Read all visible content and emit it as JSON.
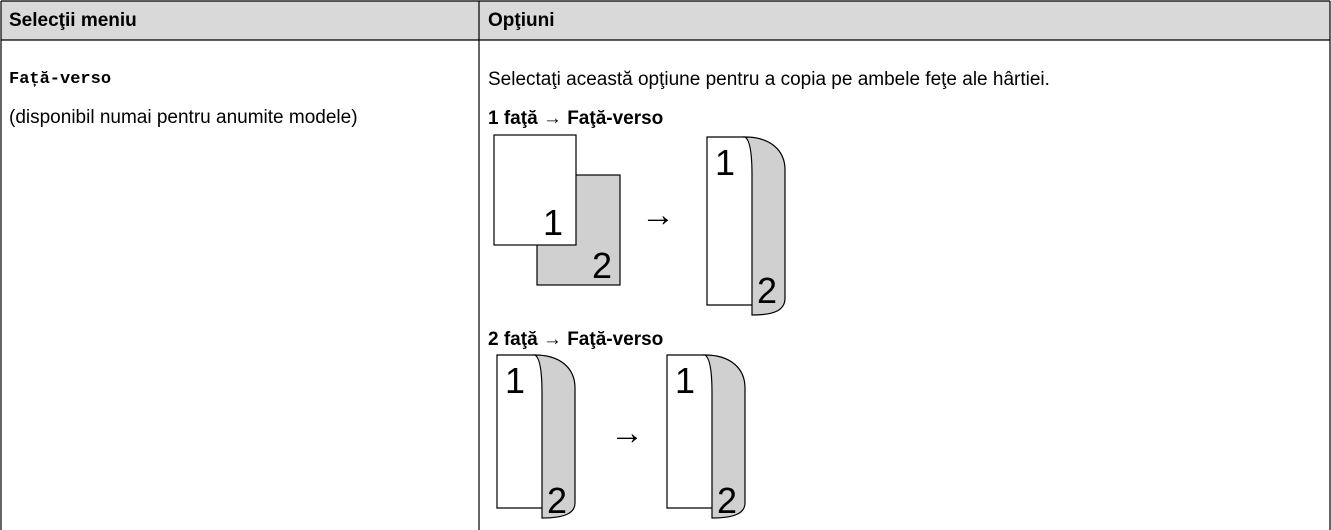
{
  "table": {
    "header": [
      "Selecţii meniu",
      "Opţiuni"
    ],
    "rows": [
      {
        "setting": "Față-verso",
        "note": "(disponibil numai pentru anumite modele)",
        "description": "Selectaţi această opţiune pentru a copia pe ambele feţe ale hârtiei.",
        "diagrams": [
          {
            "title": "1 faţă → Faţă-verso",
            "labels": [
              "1",
              "2",
              "→",
              "1",
              "2"
            ]
          },
          {
            "title": "2 faţă → Faţă-verso",
            "labels": [
              "1",
              "2",
              "→",
              "1",
              "2"
            ]
          }
        ]
      }
    ]
  }
}
